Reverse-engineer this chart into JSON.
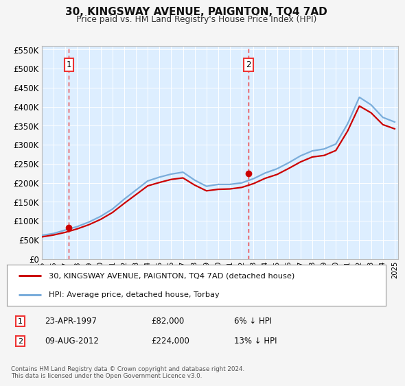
{
  "title": "30, KINGSWAY AVENUE, PAIGNTON, TQ4 7AD",
  "subtitle": "Price paid vs. HM Land Registry's House Price Index (HPI)",
  "sale1_date": "23-APR-1997",
  "sale1_price": 82000,
  "sale1_hpi": "6% ↓ HPI",
  "sale2_date": "09-AUG-2012",
  "sale2_price": 224000,
  "sale2_hpi": "13% ↓ HPI",
  "legend_label1": "30, KINGSWAY AVENUE, PAIGNTON, TQ4 7AD (detached house)",
  "legend_label2": "HPI: Average price, detached house, Torbay",
  "footer1": "Contains HM Land Registry data © Crown copyright and database right 2024.",
  "footer2": "This data is licensed under the Open Government Licence v3.0.",
  "hpi_color": "#7aaddb",
  "price_color": "#cc0000",
  "plot_bg_color": "#ddeeff",
  "grid_color": "#ffffff",
  "vline_color": "#ee3333",
  "fig_bg_color": "#f5f5f5",
  "years": [
    1995,
    1996,
    1997,
    1998,
    1999,
    2000,
    2001,
    2002,
    2003,
    2004,
    2005,
    2006,
    2007,
    2008,
    2009,
    2010,
    2011,
    2012,
    2013,
    2014,
    2015,
    2016,
    2017,
    2018,
    2019,
    2020,
    2021,
    2022,
    2023,
    2024,
    2025
  ],
  "hpi": [
    62000,
    67000,
    76000,
    85000,
    97000,
    112000,
    131000,
    157000,
    181000,
    205000,
    215000,
    223000,
    228000,
    207000,
    191000,
    196000,
    196000,
    200000,
    211000,
    226000,
    237000,
    253000,
    271000,
    284000,
    289000,
    302000,
    355000,
    425000,
    405000,
    372000,
    360000
  ],
  "price_paid": [
    58000,
    63000,
    70000,
    79000,
    90000,
    104000,
    122000,
    146000,
    169000,
    192000,
    201000,
    209000,
    213000,
    194000,
    179000,
    183000,
    184000,
    188000,
    198000,
    212000,
    222000,
    238000,
    255000,
    268000,
    272000,
    285000,
    336000,
    402000,
    384000,
    353000,
    342000
  ],
  "sale1_x": 1997.29,
  "sale2_x": 2012.58,
  "ylim": [
    0,
    560000
  ],
  "yticks": [
    0,
    50000,
    100000,
    150000,
    200000,
    250000,
    300000,
    350000,
    400000,
    450000,
    500000,
    550000
  ]
}
